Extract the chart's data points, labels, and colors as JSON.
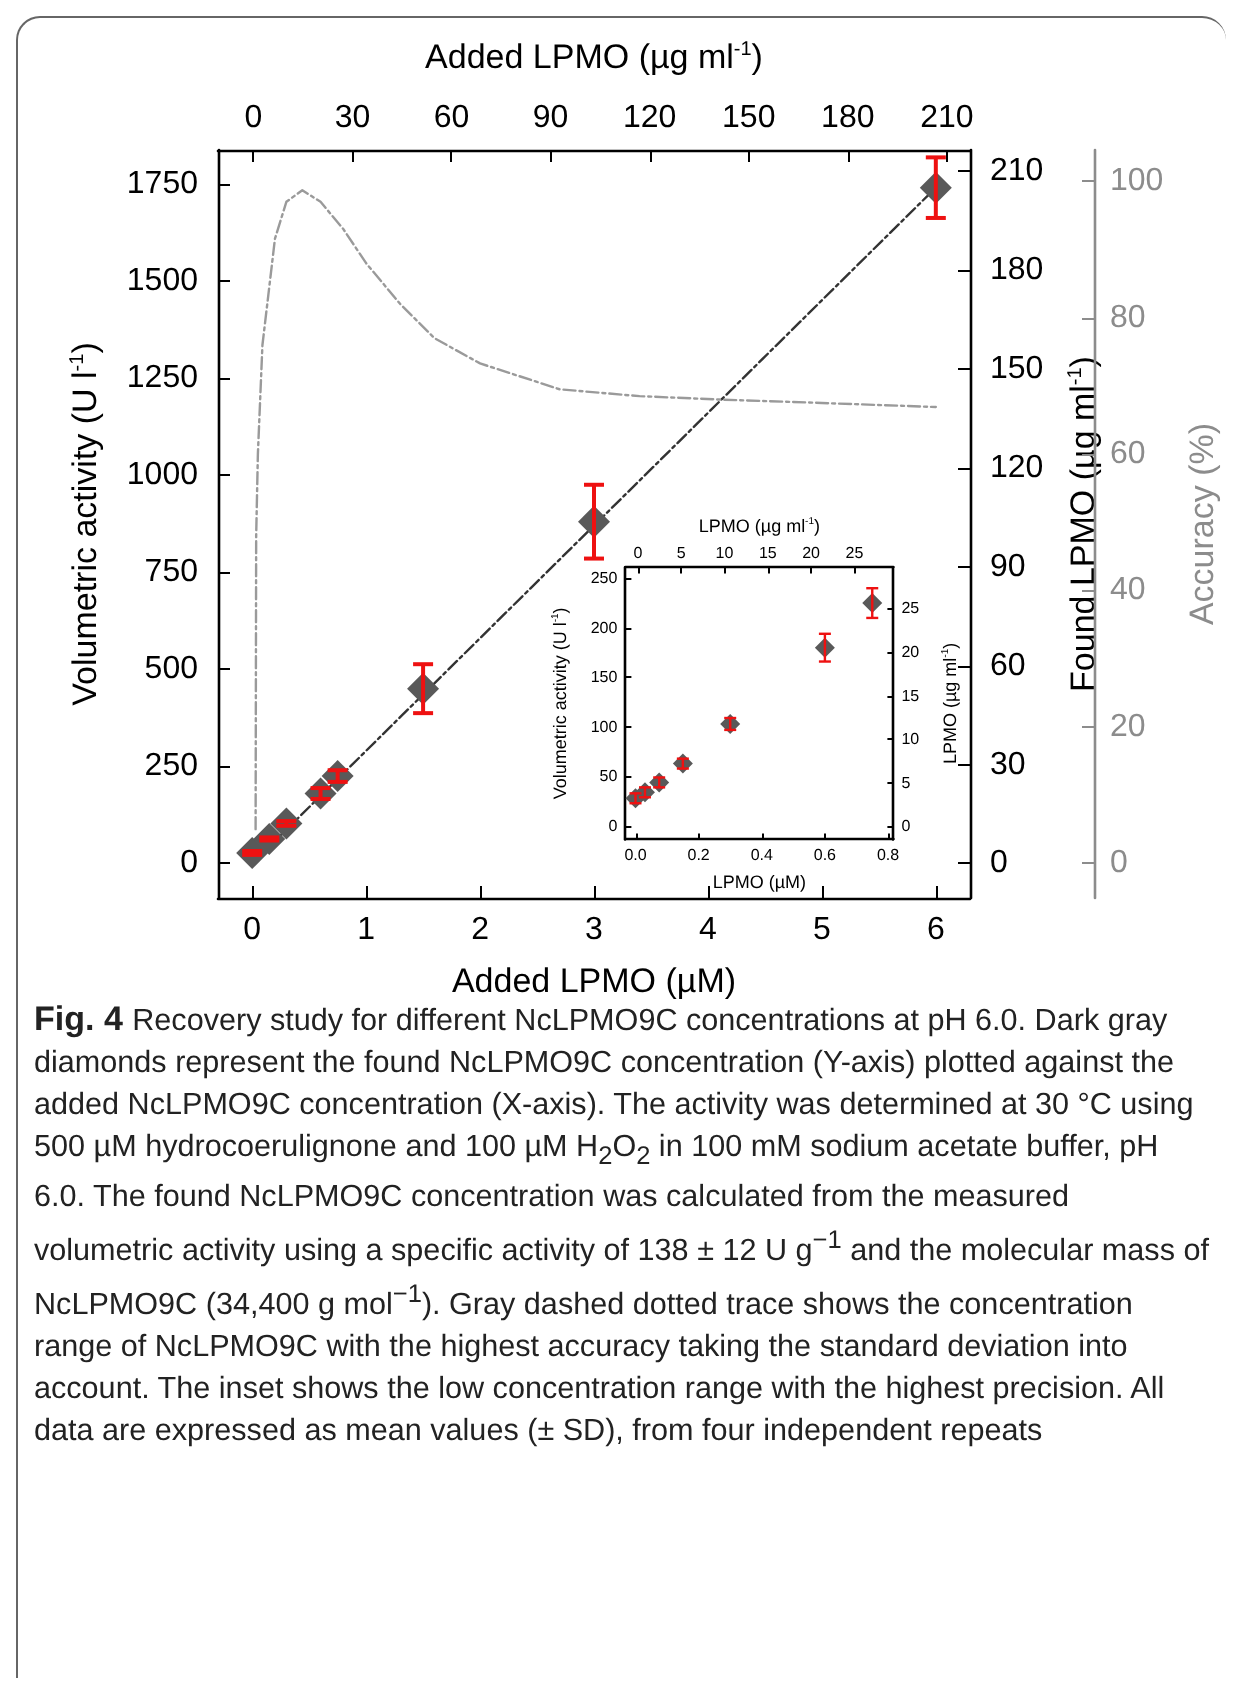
{
  "chart_data": [
    {
      "type": "scatter",
      "marker": "diamond",
      "xlabel": "Added LPMO (µM)",
      "x2label": "Added LPMO (µg ml$^{-1}$)",
      "ylabel": "Volumetric activity (U l$^{-1}$)",
      "y2label": "Found LPMO (µg ml$^{-1}$)",
      "y3label": "Accuracy (%)",
      "xlim": [
        -0.3,
        6.3
      ],
      "xticks": [
        0,
        1,
        2,
        3,
        4,
        5,
        6
      ],
      "x2lim": [
        -10.7,
        217
      ],
      "x2ticks": [
        0,
        30,
        60,
        90,
        120,
        150,
        180,
        210
      ],
      "ylim": [
        -89,
        1837
      ],
      "yticks": [
        0,
        250,
        500,
        750,
        1000,
        1250,
        1500,
        1750
      ],
      "y2lim": [
        -10.5,
        216.5
      ],
      "y2ticks": [
        0,
        30,
        60,
        90,
        120,
        150,
        180,
        210
      ],
      "y3lim": [
        -5.1,
        104.6
      ],
      "y3ticks": [
        0,
        20,
        40,
        60,
        80,
        100
      ],
      "x": [
        0,
        0.15,
        0.3,
        0.6,
        0.75,
        1.5,
        3,
        6
      ],
      "series": [
        {
          "color": "#595959",
          "values": [
            27,
            63,
            103,
            180,
            225,
            450,
            880,
            1740
          ],
          "errors": [
            5,
            4,
            6,
            14,
            15,
            63,
            95,
            78
          ]
        },
        {
          "type": "line",
          "marker": "none",
          "line_style": "dashed",
          "color": "#333333",
          "x": [
            0,
            6
          ],
          "values": [
            0,
            1740
          ]
        },
        {
          "type": "line",
          "marker": "none",
          "line_style": "dashed",
          "color": "#9a9a9a",
          "axis": "y3",
          "x": [
            0.03,
            0.035,
            0.05,
            0.09,
            0.2,
            0.3,
            0.44,
            0.6,
            0.8,
            1.0,
            1.3,
            1.6,
            2.0,
            2.7,
            3.4,
            4.1,
            5,
            6
          ],
          "values": [
            5,
            48,
            60,
            76,
            91.6,
            97,
            98.7,
            97,
            93,
            88,
            82,
            77,
            73.3,
            69.5,
            68.5,
            68,
            67.5,
            66.9
          ]
        }
      ],
      "annotations": [
        "Fig. 4",
        "Recovery study for different NcLPMO9C concentrations at pH 6.0. Dark gray diamonds represent the found NcLPMO9C concentration (Y-axis) plotted against the added NcLPMO9C concentration (X-axis). The activity was determined at 30 °C using 500 µM hydrocoerulignone and 100 µM H$_{2}$O$_{2}$ in 100 mM sodium acetate buffer, pH 6.0. The found NcLPMO9C concentration was calculated from the measured volumetric activity using a specific activity of 138 ± 12 U g$^{−1}$ and the molecular mass of NcLPMO9C (34,400 g mol$^{−1}$). Gray dashed dotted trace shows the concentration range of NcLPMO9C with the highest accuracy taking the standard deviation into account. The inset shows the low concentration range with the highest precision. All data are expressed as mean values (± SD), from four independent repeats"
      ]
    },
    {
      "type": "scatter",
      "marker": "diamond",
      "xlabel": "LPMO (µM)",
      "x2label": "LPMO (µg ml$^{-1}$)",
      "ylabel": "Volumetric activity (U l$^{-1}$)",
      "y2label": "LPMO (µg ml$^{-1}$)",
      "xlim": [
        -0.032,
        0.817
      ],
      "xticks": [
        {
          "value": 0,
          "label": "0.0"
        },
        0.2,
        0.4,
        0.6,
        0.8
      ],
      "x2lim": [
        -1.44,
        29.5
      ],
      "x2ticks": [
        0,
        5,
        10,
        15,
        20,
        25
      ],
      "ylim": [
        -13.5,
        261
      ],
      "yticks": [
        0,
        50,
        100,
        150,
        200,
        250
      ],
      "y2lim": [
        -1.5,
        29.7
      ],
      "y2ticks": [
        0,
        5,
        10,
        15,
        20,
        25
      ],
      "x": [
        0,
        0.03,
        0.075,
        0.15,
        0.3,
        0.6,
        0.75
      ],
      "series": [
        {
          "color": "#595959",
          "values": [
            28,
            34,
            44,
            63,
            103,
            180,
            225
          ],
          "errors": [
            5,
            5,
            5,
            5,
            6,
            14,
            15
          ]
        }
      ]
    }
  ]
}
